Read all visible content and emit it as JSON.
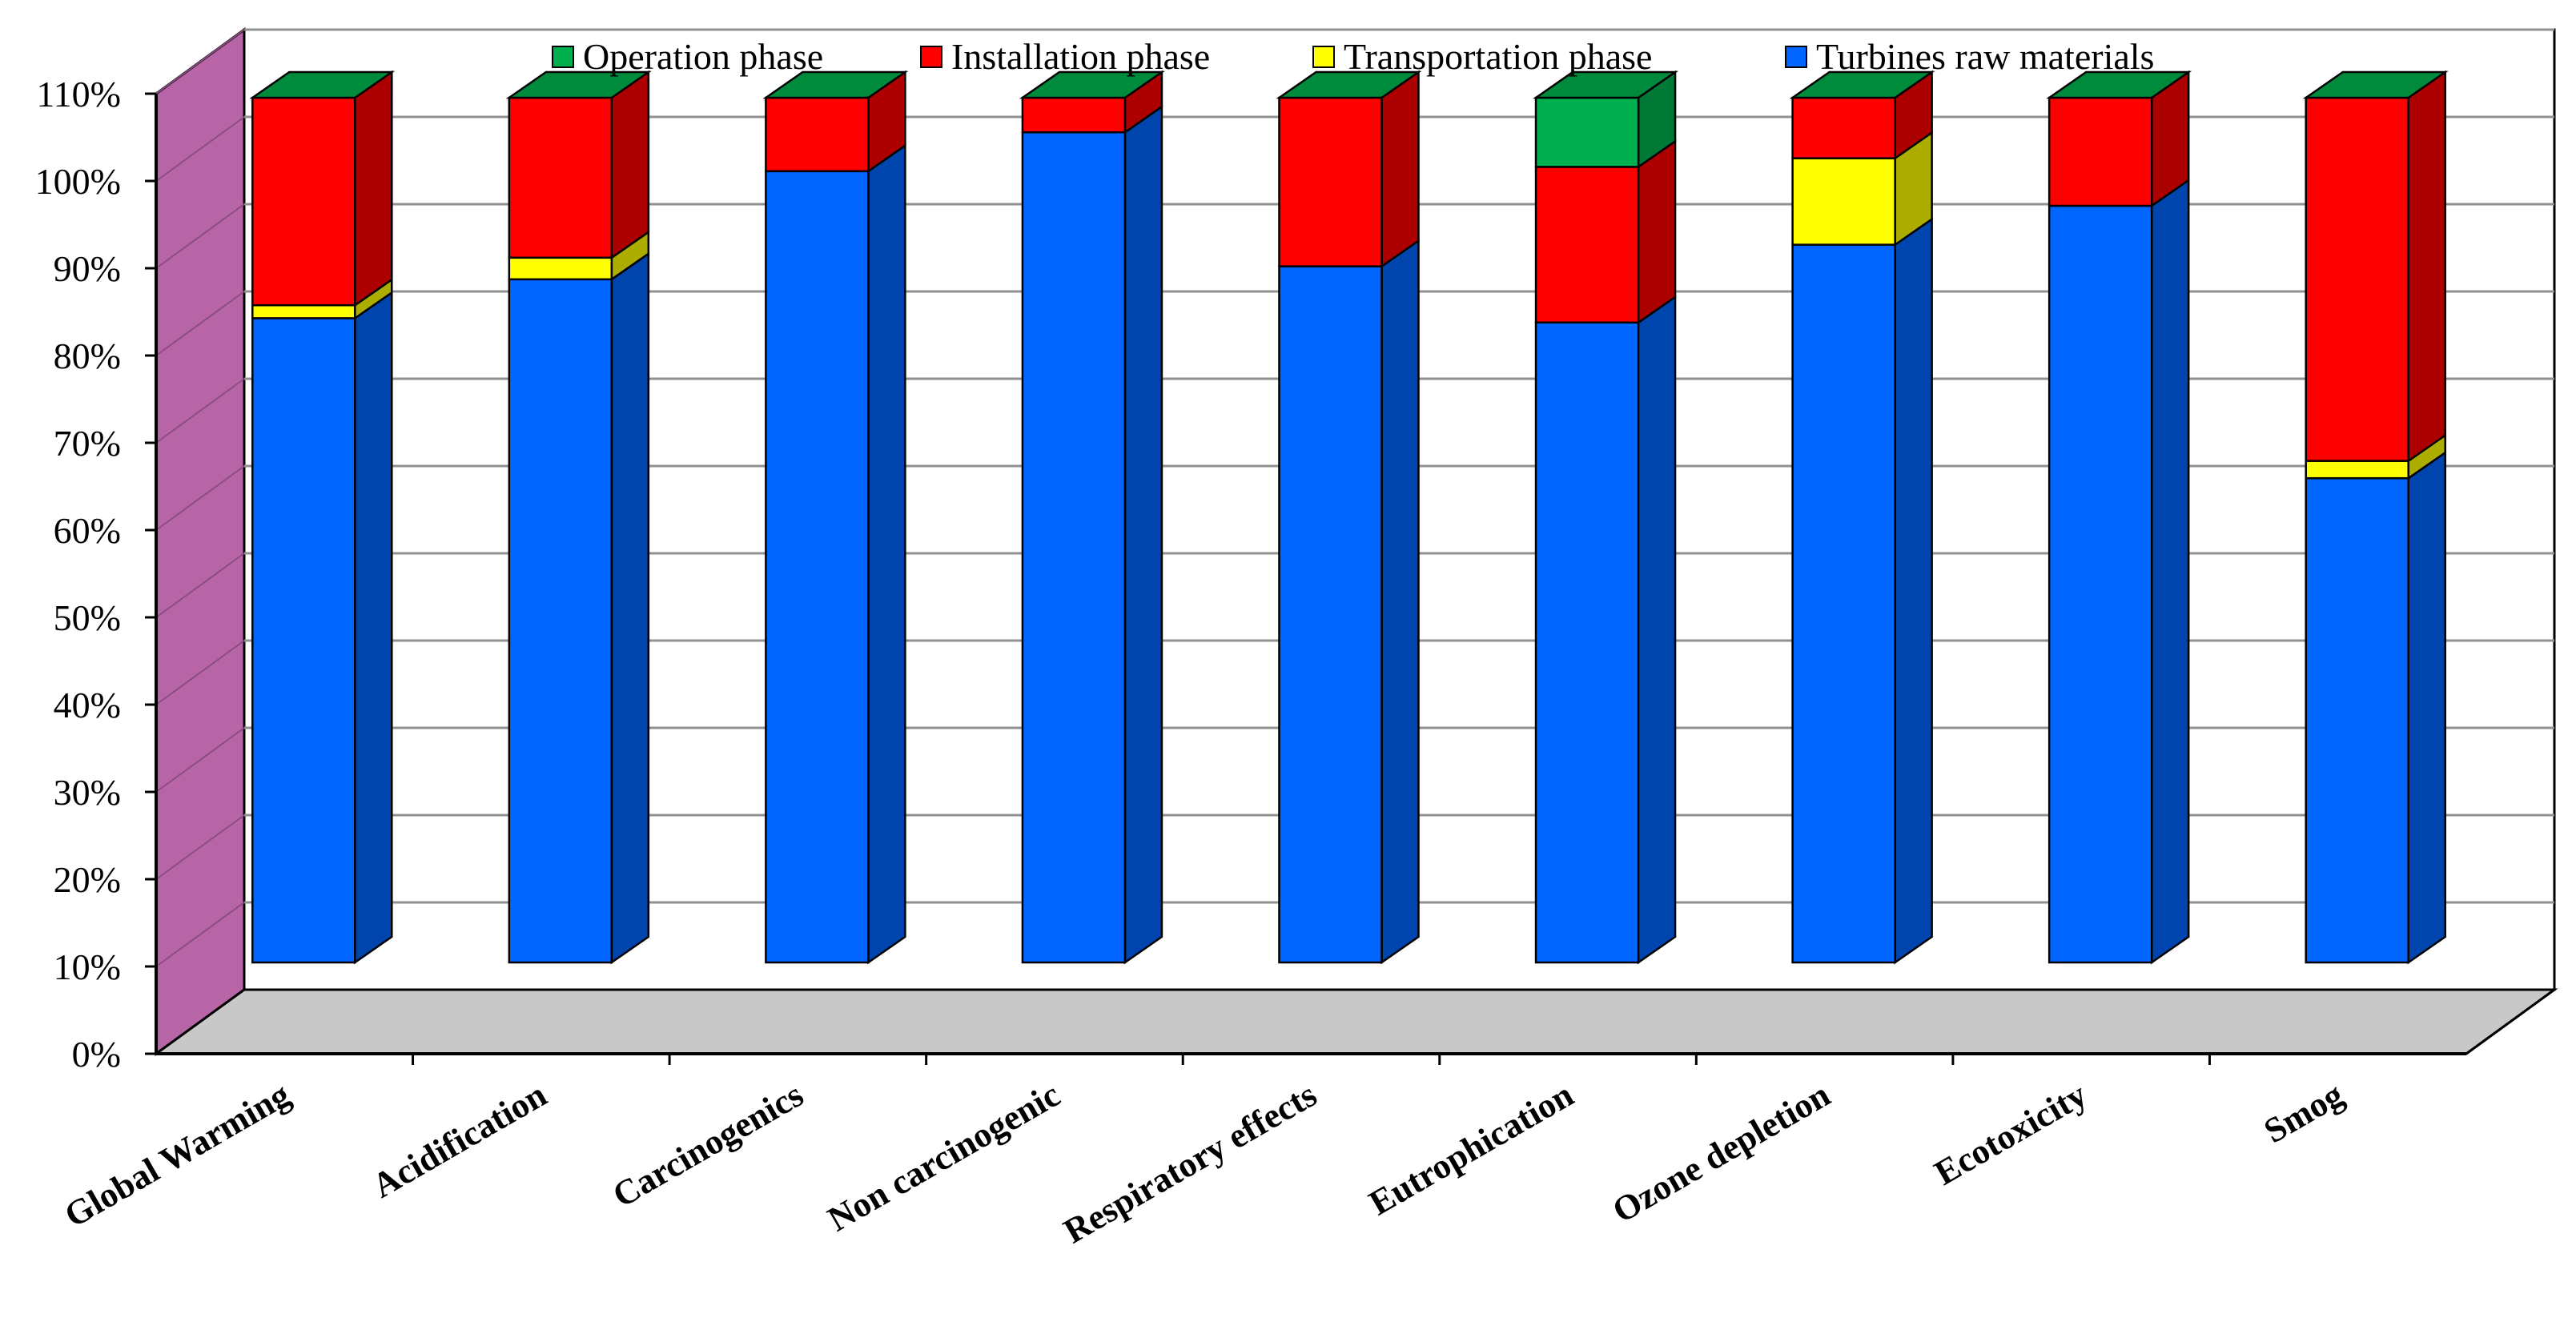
{
  "chart_data": {
    "type": "bar",
    "stacked": true,
    "percent_stacked": true,
    "three_d": true,
    "title": "",
    "xlabel": "",
    "ylabel": "",
    "ylim": [
      0,
      110
    ],
    "y_ticks": [
      "0%",
      "10%",
      "20%",
      "30%",
      "40%",
      "50%",
      "60%",
      "70%",
      "80%",
      "90%",
      "100%",
      "110%"
    ],
    "grid": true,
    "legend_position": "top",
    "legend_order": [
      "Operation phase",
      "Installation phase",
      "Transportation phase",
      "Turbines raw materials"
    ],
    "categories": [
      "Global Warming",
      "Acidification",
      "Carcinogenics",
      "Non carcinogenic",
      "Respiratory effects",
      "Eutrophication",
      "Ozone depletion",
      "Ecotoxicity",
      "Smog"
    ],
    "series": [
      {
        "name": "Turbines raw materials",
        "color": "#0066FF",
        "values": [
          74.5,
          79,
          91.5,
          96,
          80.5,
          74,
          83,
          87.5,
          56
        ]
      },
      {
        "name": "Transportation phase",
        "color": "#FFFF00",
        "values": [
          1.5,
          2.5,
          0,
          0,
          0,
          0,
          10,
          0,
          2
        ]
      },
      {
        "name": "Installation phase",
        "color": "#FF0000",
        "values": [
          24,
          18.5,
          8.5,
          4,
          19.5,
          18,
          7,
          12.5,
          42
        ]
      },
      {
        "name": "Operation phase",
        "color": "#00B050",
        "values": [
          0,
          0,
          0,
          0,
          0,
          8,
          0,
          0,
          0
        ]
      }
    ],
    "colors": {
      "wall": "#B865A8",
      "floor": "#C8C8C8",
      "plot_background": "#FFFFFF",
      "gridline": "#909090",
      "top_cap": "#008A3C"
    }
  }
}
